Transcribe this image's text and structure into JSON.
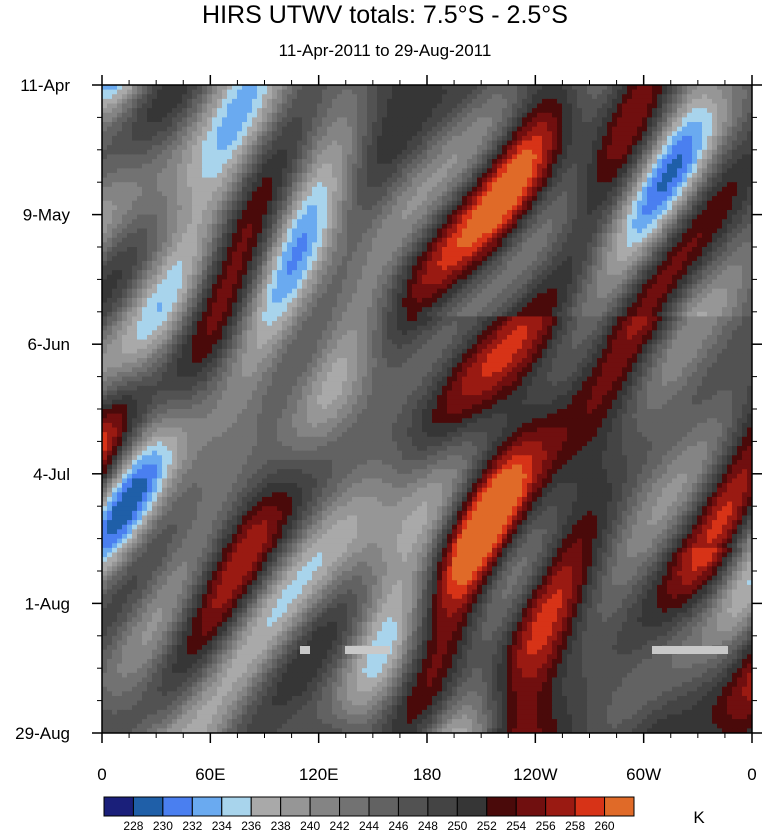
{
  "chart_data": {
    "type": "heatmap",
    "title": "HIRS UTWV totals: 7.5°S - 2.5°S",
    "subtitle": "11-Apr-2011 to 29-Aug-2011",
    "x_ticks": [
      "0",
      "60E",
      "120E",
      "180",
      "120W",
      "60W",
      "0"
    ],
    "x_tick_values": [
      0,
      60,
      120,
      180,
      240,
      300,
      360
    ],
    "x_range": [
      0,
      360
    ],
    "y_ticks": [
      "11-Apr",
      "9-May",
      "6-Jun",
      "4-Jul",
      "1-Aug",
      "29-Aug"
    ],
    "y_tick_values": [
      0,
      28,
      56,
      84,
      112,
      140
    ],
    "y_range": [
      0,
      140
    ],
    "colorbar": {
      "unit": "K",
      "levels": [
        228,
        230,
        232,
        234,
        236,
        238,
        240,
        242,
        244,
        246,
        248,
        250,
        252,
        254,
        256,
        258,
        260
      ],
      "colors": [
        "#1a1f7a",
        "#1f5fa8",
        "#4a7ff0",
        "#6aaaf0",
        "#a8d4ec",
        "#a9a9a9",
        "#969696",
        "#848484",
        "#727272",
        "#626262",
        "#525252",
        "#444444",
        "#363636",
        "#4a0a0a",
        "#700f0f",
        "#9a1a12",
        "#d73317",
        "#e06a28"
      ]
    }
  }
}
